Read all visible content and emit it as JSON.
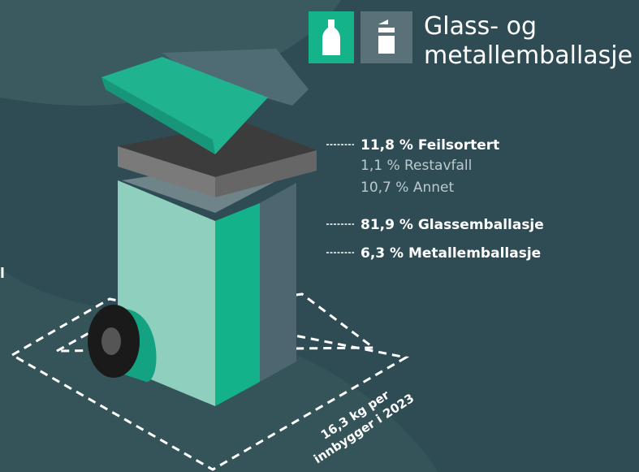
{
  "header": {
    "title_lines": [
      "Glass- og",
      "metallemballasje"
    ]
  },
  "labels": {
    "missorted": "11,8 % Feilsortert",
    "residual": "1,1 % Restavfall",
    "other": "10,7 % Annet",
    "glass": "81,9 % Glassemballasje",
    "metal": "6,3 % Metallemballasje"
  },
  "footprint": {
    "lines": [
      "16,3 kg per",
      "innbygger i 2023"
    ]
  },
  "edge_fragment": "l"
}
